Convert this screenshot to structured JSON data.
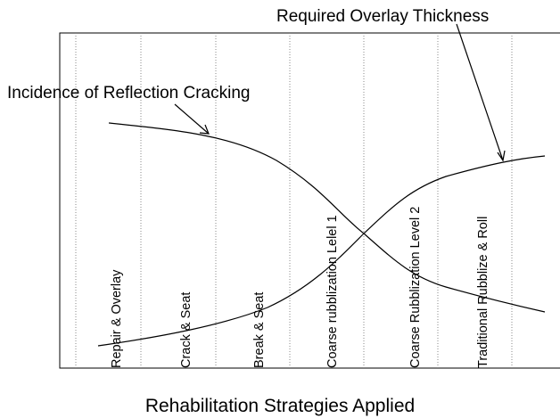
{
  "annotations": {
    "overlay": "Required Overlay Thickness",
    "cracking": "Incidence of Reflection Cracking"
  },
  "strategies": [
    "Repair & Overlay",
    "Crack & Seat",
    "Break & Seat",
    "Coarse rubblization Lelel 1",
    "Coarse Rubblization Level 2",
    "Traditional Rubblize & Roll"
  ],
  "x_axis_label": "Rehabilitation Strategies Applied"
}
